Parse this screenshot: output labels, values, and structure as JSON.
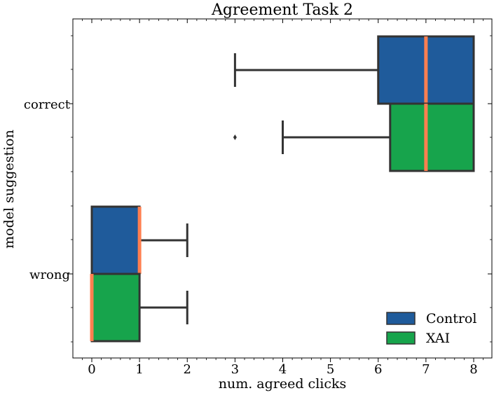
{
  "chart_data": {
    "type": "boxplot",
    "orientation": "horizontal",
    "title": "Agreement Task 2",
    "xlabel": "num. agreed clicks",
    "ylabel": "model suggestion",
    "xlim": [
      -0.4,
      8.4
    ],
    "xticks": [
      0,
      1,
      2,
      3,
      4,
      5,
      6,
      7,
      8
    ],
    "xtick_labels": [
      "0",
      "1",
      "2",
      "3",
      "4",
      "5",
      "6",
      "7",
      "8"
    ],
    "categories": [
      "correct",
      "wrong"
    ],
    "legend": {
      "placement": "lower-right"
    },
    "series": [
      {
        "name": "Control",
        "color": "#1f5b9b",
        "boxes": [
          {
            "category": "correct",
            "whisker_low": 3,
            "q1": 6,
            "median": 7,
            "q3": 8,
            "whisker_high": 8,
            "outliers": []
          },
          {
            "category": "wrong",
            "whisker_low": 0,
            "q1": 0,
            "median": 1,
            "q3": 1,
            "whisker_high": 2,
            "outliers": []
          }
        ]
      },
      {
        "name": "XAI",
        "color": "#17a44c",
        "boxes": [
          {
            "category": "correct",
            "whisker_low": 4,
            "q1": 6.25,
            "median": 7,
            "q3": 8,
            "whisker_high": 8,
            "outliers": [
              3
            ]
          },
          {
            "category": "wrong",
            "whisker_low": 0,
            "q1": 0,
            "median": 0,
            "q3": 1,
            "whisker_high": 2,
            "outliers": []
          }
        ]
      }
    ],
    "median_color": "#ff7f50",
    "edge_color": "#333333"
  }
}
